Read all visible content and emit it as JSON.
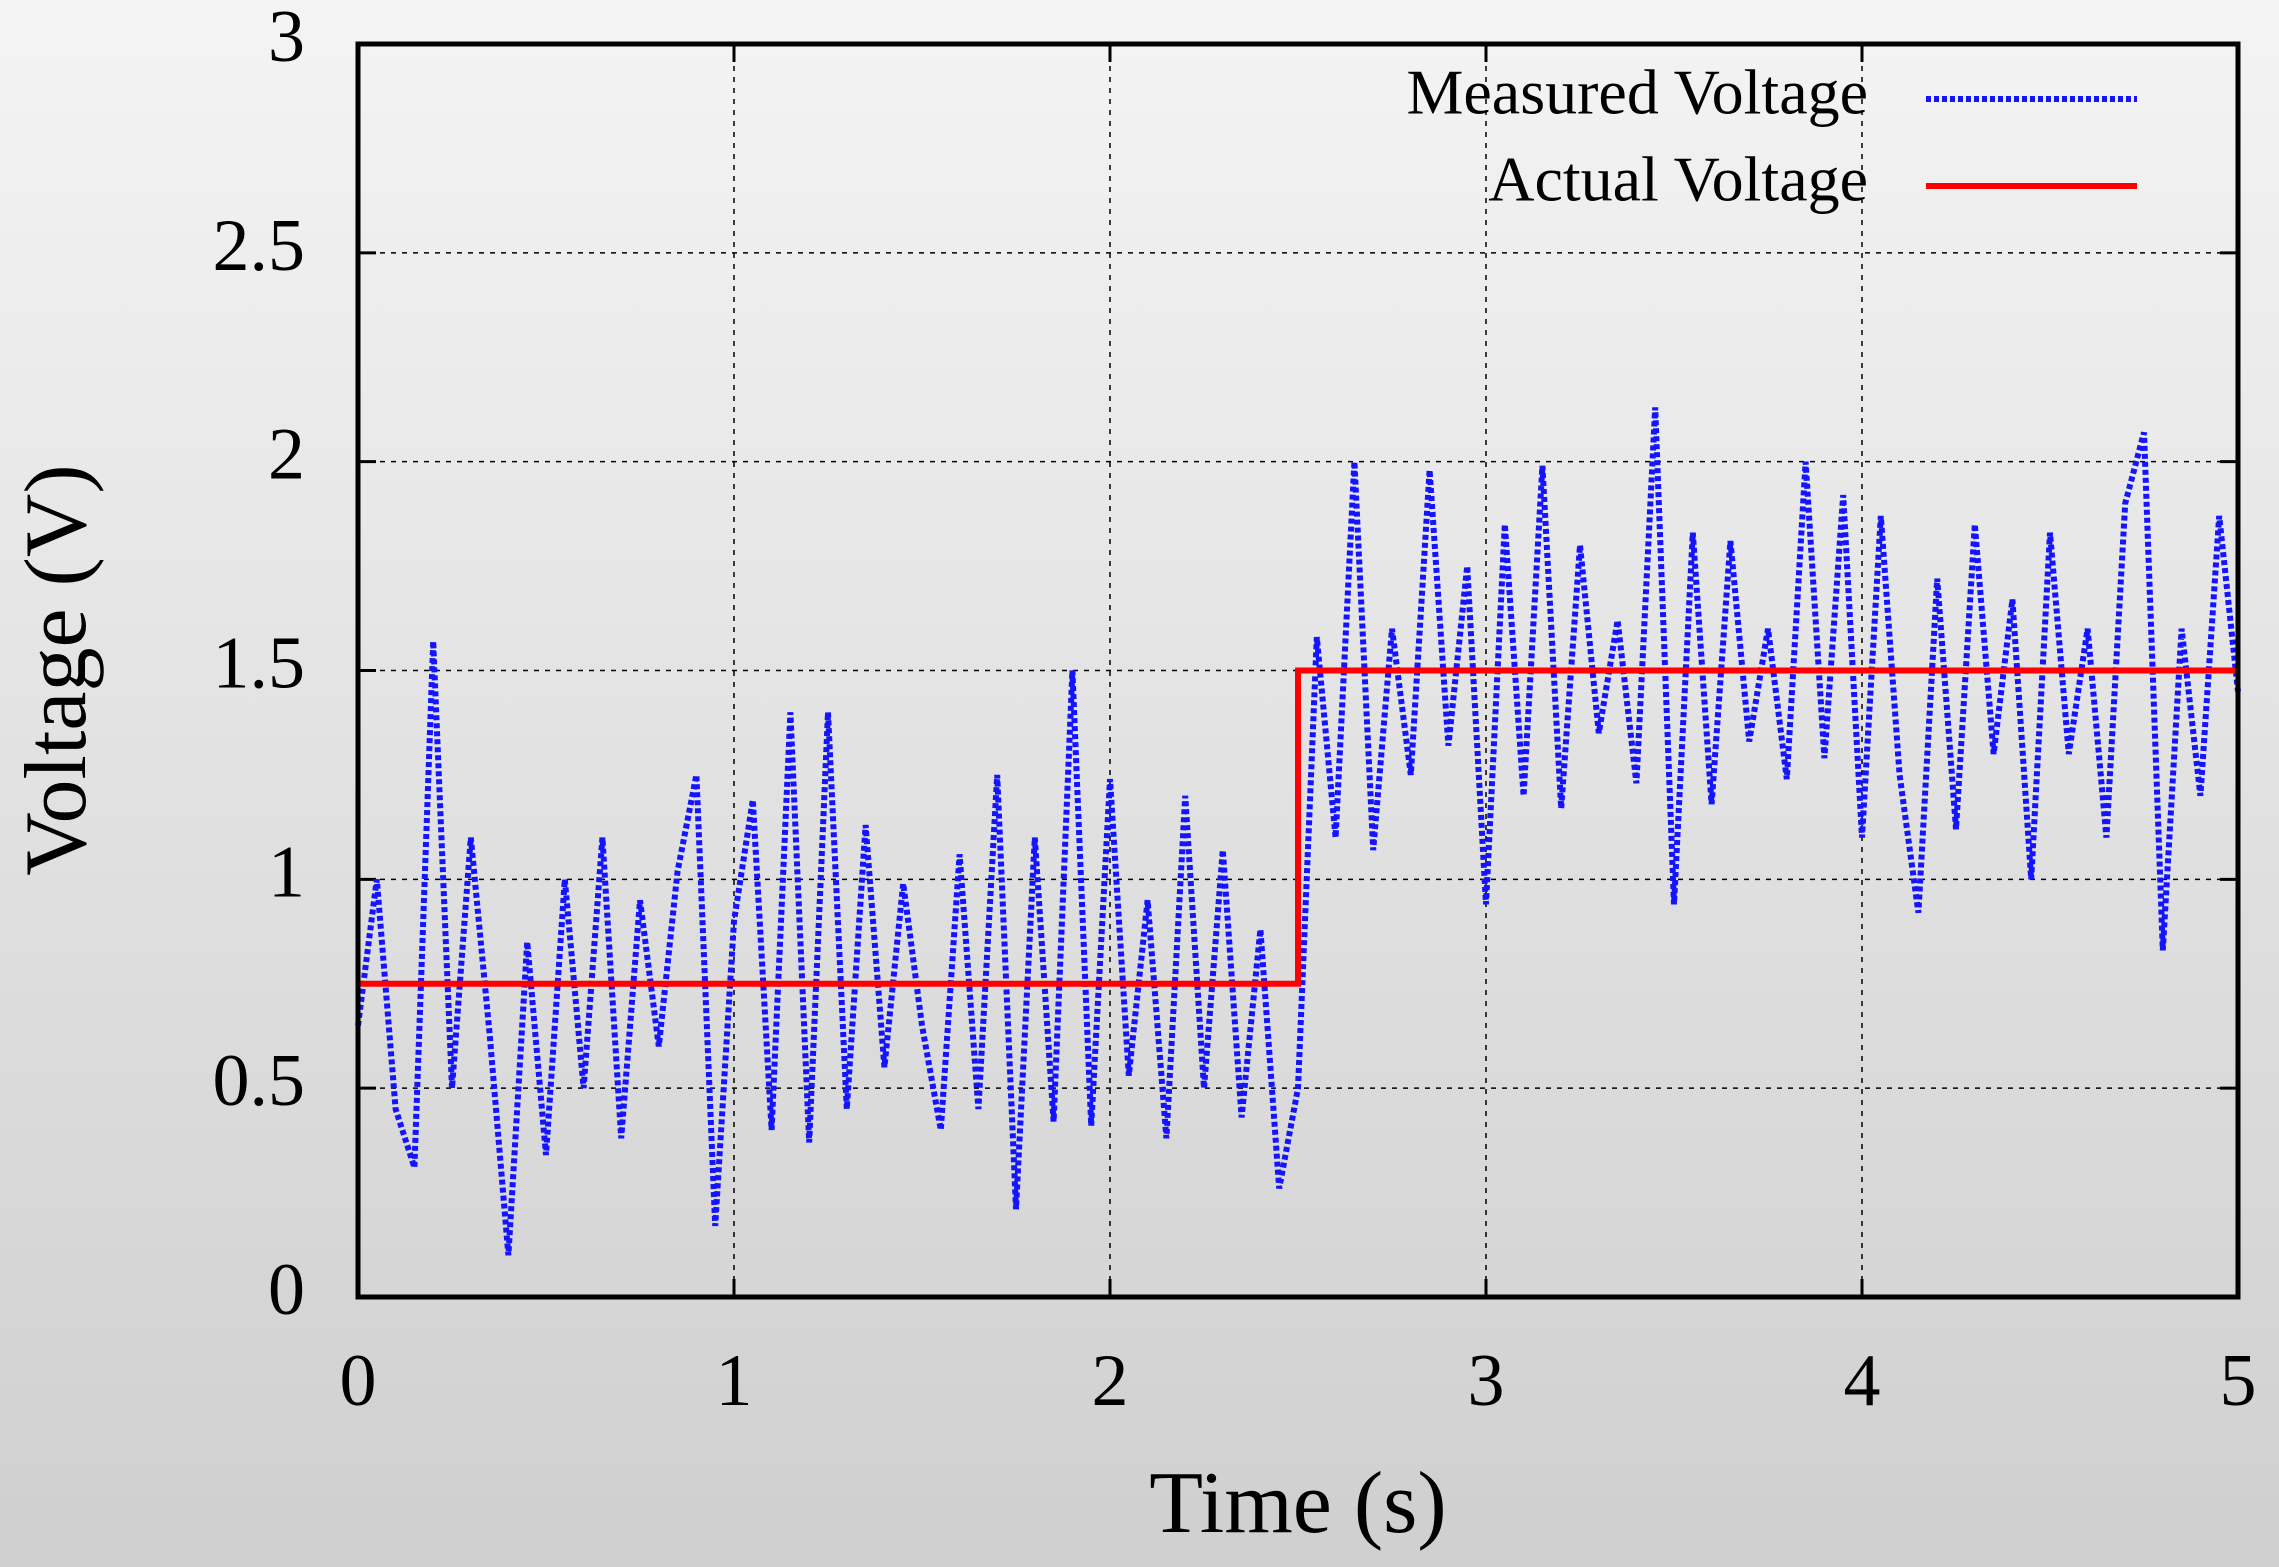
{
  "chart_data": {
    "type": "line",
    "xlabel": "Time (s)",
    "ylabel": "Voltage (V)",
    "xlim": [
      0,
      5
    ],
    "ylim": [
      0,
      3
    ],
    "xticks": [
      0,
      1,
      2,
      3,
      4,
      5
    ],
    "yticks": [
      0,
      0.5,
      1,
      1.5,
      2,
      2.5,
      3
    ],
    "grid": true,
    "legend": "upper right",
    "series": [
      {
        "name": "Measured Voltage",
        "color": "#1414ff",
        "style": "dotted",
        "x": [
          0,
          0.05,
          0.1,
          0.15,
          0.2,
          0.25,
          0.3,
          0.35,
          0.4,
          0.45,
          0.5,
          0.55,
          0.6,
          0.65,
          0.7,
          0.75,
          0.8,
          0.85,
          0.9,
          0.95,
          1,
          1.05,
          1.1,
          1.15,
          1.2,
          1.25,
          1.3,
          1.35,
          1.4,
          1.45,
          1.5,
          1.55,
          1.6,
          1.65,
          1.7,
          1.75,
          1.8,
          1.85,
          1.9,
          1.95,
          2,
          2.05,
          2.1,
          2.15,
          2.2,
          2.25,
          2.3,
          2.35,
          2.4,
          2.45,
          2.5,
          2.55,
          2.6,
          2.65,
          2.7,
          2.75,
          2.8,
          2.85,
          2.9,
          2.95,
          3,
          3.05,
          3.1,
          3.15,
          3.2,
          3.25,
          3.3,
          3.35,
          3.4,
          3.45,
          3.5,
          3.55,
          3.6,
          3.65,
          3.7,
          3.75,
          3.8,
          3.85,
          3.9,
          3.95,
          4,
          4.05,
          4.1,
          4.15,
          4.2,
          4.25,
          4.3,
          4.35,
          4.4,
          4.45,
          4.5,
          4.55,
          4.6,
          4.65,
          4.7,
          4.75,
          4.8,
          4.85,
          4.9,
          4.95,
          5
        ],
        "values": [
          0.65,
          1.0,
          0.45,
          0.31,
          1.57,
          0.5,
          1.1,
          0.63,
          0.1,
          0.85,
          0.34,
          1.0,
          0.5,
          1.1,
          0.38,
          0.95,
          0.6,
          1.02,
          1.25,
          0.17,
          0.9,
          1.19,
          0.4,
          1.4,
          0.37,
          1.4,
          0.45,
          1.13,
          0.55,
          0.99,
          0.65,
          0.4,
          1.06,
          0.45,
          1.25,
          0.21,
          1.1,
          0.42,
          1.5,
          0.41,
          1.24,
          0.53,
          0.95,
          0.38,
          1.2,
          0.5,
          1.07,
          0.43,
          0.88,
          0.26,
          0.5,
          1.58,
          1.1,
          2.0,
          1.07,
          1.6,
          1.25,
          1.98,
          1.32,
          1.75,
          0.94,
          1.85,
          1.2,
          1.99,
          1.17,
          1.8,
          1.35,
          1.62,
          1.23,
          2.13,
          0.94,
          1.83,
          1.18,
          1.81,
          1.33,
          1.6,
          1.24,
          2.0,
          1.29,
          1.92,
          1.1,
          1.87,
          1.25,
          0.92,
          1.72,
          1.12,
          1.85,
          1.3,
          1.67,
          1.0,
          1.83,
          1.3,
          1.6,
          1.1,
          1.9,
          2.07,
          0.83,
          1.6,
          1.2,
          1.87,
          1.45
        ]
      },
      {
        "name": "Actual Voltage",
        "color": "#ff0000",
        "style": "solid",
        "x": [
          0,
          2.5,
          2.5,
          5
        ],
        "values": [
          0.75,
          0.75,
          1.5,
          1.5
        ]
      }
    ]
  }
}
